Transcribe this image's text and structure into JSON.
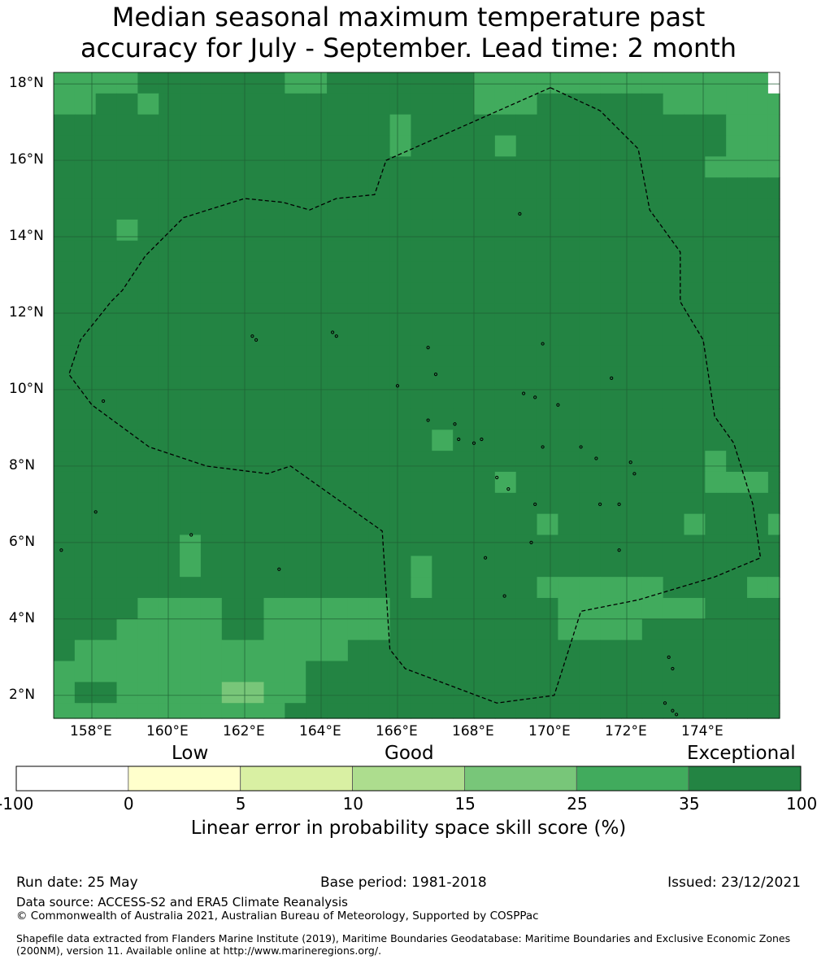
{
  "title_line1": "Median seasonal maximum temperature past",
  "title_line2": "accuracy for July - September. Lead time: 2 month",
  "map": {
    "lon_labels": [
      "158°E",
      "160°E",
      "162°E",
      "164°E",
      "166°E",
      "168°E",
      "170°E",
      "172°E",
      "174°E"
    ],
    "lat_labels": [
      "18°N",
      "16°N",
      "14°N",
      "12°N",
      "10°N",
      "8°N",
      "6°N",
      "4°N",
      "2°N"
    ],
    "lon_values": [
      158,
      160,
      162,
      164,
      166,
      168,
      170,
      172,
      174
    ],
    "lat_values": [
      18,
      16,
      14,
      12,
      10,
      8,
      6,
      4,
      2
    ],
    "extent": {
      "lon_min": 157.0,
      "lon_max": 176.0,
      "lat_min": 1.4,
      "lat_max": 18.3
    },
    "grid_lon_start": 157.0,
    "grid_lat_top": 18.3,
    "cell_deg": 0.55,
    "grid_lines": true,
    "skill_levels": {
      "D": "35-100",
      "M": "25-35",
      "L": "15-25",
      "W": "-100-0"
    },
    "skill_grid": [
      "MMMMDDDDDDDMMDDDDDDDMMMMMMMMMMMMMMW",
      "MMDDMDDDDDDDDDDDDDDDMMMDDDDDDMMMMMM",
      "DDDDDDDDDDDDDDDDMDDDDDDDDDDDDDDDMMM",
      "DDDDDDDDDDDDDDDDMDDDDMDDDDDDDDDDMMM",
      "DDDDDDDDDDDDDDDDDDDDDDDDDDDDDDDMMMM",
      "DDDDDDDDDDDDDDDDDDDDDDDDDDDDDDDDDDD",
      "DDDDDDDDDDDDDDDDDDDDDDDDDDDDDDDDDDD",
      "DDDMDDDDDDDDDDDDDDDDDDDDDDDDDDDDDDD",
      "DDDDDDDDDDDDDDDDDDDDDDDDDDDDDDDDDDD",
      "DDDDDDDDDDDDDDDDDDDDDDDDDDDDDDDDDDD",
      "DDDDDDDDDDDDDDDDDDDDDDDDDDDDDDDDDDD",
      "DDDDDDDDDDDDDDDDDDDDDDDDDDDDDDDDDDD",
      "DDDDDDDDDDDDDDDDDDDDDDDDDDDDDDDDDDD",
      "DDDDDDDDDDDDDDDDDDDDDDDDDDDDDDDDDDD",
      "DDDDDDDDDDDDDDDDDDDDDDDDDDDDDDDDDDD",
      "DDDDDDDDDDDDDDDDDDDDDDDDDDDDDDDDDDD",
      "DDDDDDDDDDDDDDDDDDDDDDDDDDDDDDDDDDD",
      "DDDDDDDDDDDDDDDDDDMDDDDDDDDDDDDDDDD",
      "DDDDDDDDDDDDDDDDDDDDDDDDDDDDDDDMDDD",
      "DDDDDDDDDDDDDDDDDDDDDMDDDDDDDDDMMMD",
      "DDDDDDDDDDDDDDDDDDDDDDDDDDDDDDDDDDD",
      "DDDDDDDDDDDDDDDDDDDDDDDMDDDDDDMDDDM",
      "DDDDDDMDDDDDDDDDDDDDDDDDDDDDDDDDDDD",
      "DDDDDDMDDDDDDDDDDMDDDDDDDDDDDDDDDDD",
      "DDDDDDDDDDDDDDDDDMDDDDDMMMMMMDDDDMMD",
      "DDDDMMMMDDMMMMMMDDDDDDDDMMMMMMMDDDDD",
      "DDDMMMMMDDMMMMMMDDDDDDDDMMMMDDDDDDDM",
      "DMMMMMMMMMMMMMDDDDDDDDDDDDDDDDDDDDDM",
      "MMMMMMMMMMMMDDDDDDDDDDDDDDDDDDDDDDDD",
      "MDDMMMMMLLMMDDDDDDDDDDDDDDDDDDDDDDDD",
      "MMMMMMMMMMMDDDDDDDDDDDDDDDDDDDDDDDDD",
      "DDDMDDDDDDDDDDDDDDDDDDDDDDDDDDDDDDDD"
    ],
    "eez_boundary_lonlat": [
      [
        170.0,
        17.9
      ],
      [
        171.3,
        17.3
      ],
      [
        172.3,
        16.3
      ],
      [
        172.6,
        14.7
      ],
      [
        173.4,
        13.6
      ],
      [
        173.4,
        12.3
      ],
      [
        174.0,
        11.3
      ],
      [
        174.3,
        9.3
      ],
      [
        174.8,
        8.6
      ],
      [
        175.3,
        7.0
      ],
      [
        175.5,
        5.6
      ],
      [
        174.3,
        5.1
      ],
      [
        172.3,
        4.5
      ],
      [
        170.8,
        4.2
      ],
      [
        170.1,
        2.0
      ],
      [
        168.6,
        1.8
      ],
      [
        166.2,
        2.7
      ],
      [
        165.8,
        3.2
      ],
      [
        165.6,
        6.3
      ],
      [
        163.2,
        8.0
      ],
      [
        162.6,
        7.8
      ],
      [
        161.0,
        8.0
      ],
      [
        159.5,
        8.5
      ],
      [
        158.0,
        9.6
      ],
      [
        157.4,
        10.4
      ],
      [
        157.7,
        11.3
      ],
      [
        158.5,
        12.3
      ],
      [
        158.8,
        12.6
      ],
      [
        159.4,
        13.5
      ],
      [
        160.4,
        14.5
      ],
      [
        162.0,
        15.0
      ],
      [
        163.0,
        14.9
      ],
      [
        163.7,
        14.7
      ],
      [
        164.4,
        15.0
      ],
      [
        165.4,
        15.1
      ],
      [
        165.7,
        16.0
      ],
      [
        170.0,
        17.9
      ]
    ],
    "islands_lonlat": [
      [
        162.2,
        11.4
      ],
      [
        162.3,
        11.3
      ],
      [
        164.3,
        11.5
      ],
      [
        164.4,
        11.4
      ],
      [
        166.8,
        11.1
      ],
      [
        169.8,
        11.2
      ],
      [
        167.0,
        10.4
      ],
      [
        166.0,
        10.1
      ],
      [
        169.3,
        9.9
      ],
      [
        169.6,
        9.8
      ],
      [
        170.2,
        9.6
      ],
      [
        171.6,
        10.3
      ],
      [
        158.3,
        9.7
      ],
      [
        168.2,
        8.7
      ],
      [
        166.8,
        9.2
      ],
      [
        167.5,
        9.1
      ],
      [
        167.6,
        8.7
      ],
      [
        168.0,
        8.6
      ],
      [
        169.8,
        8.5
      ],
      [
        170.8,
        8.5
      ],
      [
        171.2,
        8.2
      ],
      [
        172.1,
        8.1
      ],
      [
        172.2,
        7.8
      ],
      [
        168.6,
        7.7
      ],
      [
        168.9,
        7.4
      ],
      [
        169.6,
        7.0
      ],
      [
        171.3,
        7.0
      ],
      [
        171.8,
        7.0
      ],
      [
        160.6,
        6.2
      ],
      [
        158.1,
        6.8
      ],
      [
        157.2,
        5.8
      ],
      [
        171.8,
        5.8
      ],
      [
        169.5,
        6.0
      ],
      [
        168.3,
        5.6
      ],
      [
        162.9,
        5.3
      ],
      [
        168.8,
        4.6
      ],
      [
        173.1,
        3.0
      ],
      [
        173.2,
        2.7
      ],
      [
        173.0,
        1.8
      ],
      [
        173.2,
        1.6
      ],
      [
        173.3,
        1.5
      ],
      [
        169.2,
        14.6
      ]
    ]
  },
  "colorbar": {
    "category_labels": [
      "Low",
      "Good",
      "Exceptional"
    ],
    "ticks": [
      "-100",
      "0",
      "5",
      "10",
      "15",
      "25",
      "35",
      "100"
    ],
    "colors": [
      "#ffffff",
      "#ffffcc",
      "#d9f0a3",
      "#addd8e",
      "#78c679",
      "#41ab5d",
      "#238443"
    ],
    "title": "Linear error in probability space skill score (%)"
  },
  "footer": {
    "run_date": "Run date: 25 May",
    "base_period": "Base period: 1981-2018",
    "issued": "Issued: 23/12/2021",
    "data_source": "Data source: ACCESS-S2 and ERA5 Climate Reanalysis",
    "copyright": "© Commonwealth of Australia 2021, Australian Bureau of Meteorology, Supported by COSPPac",
    "shapefile": "Shapefile data extracted from Flanders Marine Institute (2019), Maritime Boundaries Geodatabase: Maritime Boundaries and Exclusive Economic Zones (200NM), version 11. Available online at http://www.marineregions.org/."
  }
}
